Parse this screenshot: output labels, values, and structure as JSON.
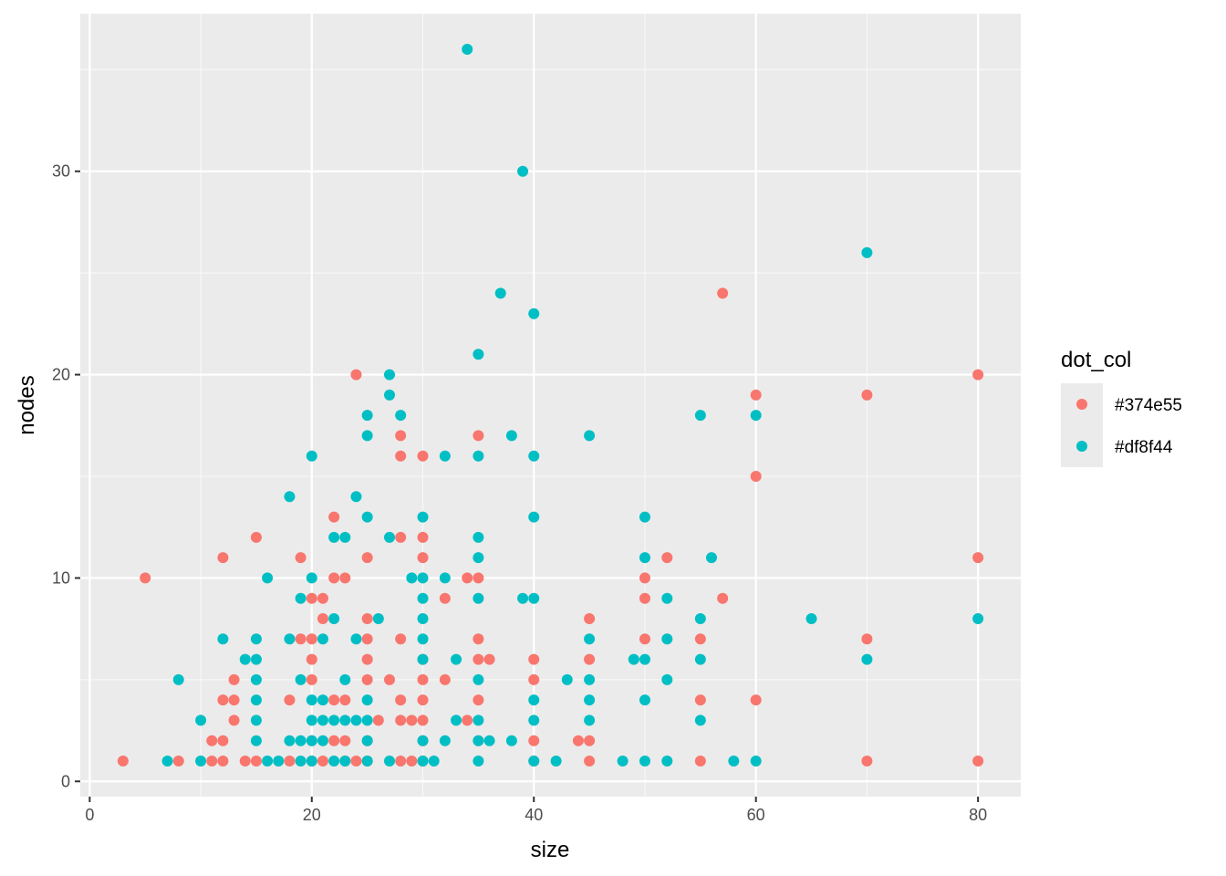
{
  "chart_data": {
    "type": "scatter",
    "title": "",
    "xlabel": "size",
    "ylabel": "nodes",
    "xlim": [
      -0.85,
      83.85
    ],
    "ylim": [
      -0.75,
      37.75
    ],
    "x_ticks": [
      0,
      20,
      40,
      60,
      80
    ],
    "y_ticks": [
      0,
      10,
      20,
      30
    ],
    "x_tick_labels": [
      "0",
      "20",
      "40",
      "60",
      "80"
    ],
    "y_tick_labels": [
      "0",
      "10",
      "20",
      "30"
    ],
    "grid": true,
    "panel_background": "#ebebeb",
    "grid_color": "#ffffff",
    "legend": {
      "title": "dot_col",
      "placement": "right",
      "entries": [
        "#374e55",
        "#df8f44"
      ]
    },
    "series": [
      {
        "name": "#374e55",
        "color": "#f8766d",
        "points": [
          [
            3,
            1
          ],
          [
            5,
            10
          ],
          [
            8,
            1
          ],
          [
            11,
            1
          ],
          [
            11,
            2
          ],
          [
            12,
            1
          ],
          [
            12,
            2
          ],
          [
            12,
            4
          ],
          [
            12,
            11
          ],
          [
            13,
            3
          ],
          [
            13,
            4
          ],
          [
            13,
            5
          ],
          [
            14,
            1
          ],
          [
            15,
            1
          ],
          [
            15,
            12
          ],
          [
            18,
            1
          ],
          [
            18,
            4
          ],
          [
            19,
            7
          ],
          [
            19,
            11
          ],
          [
            20,
            1
          ],
          [
            20,
            2
          ],
          [
            20,
            5
          ],
          [
            20,
            6
          ],
          [
            20,
            7
          ],
          [
            20,
            9
          ],
          [
            21,
            1
          ],
          [
            21,
            8
          ],
          [
            21,
            9
          ],
          [
            22,
            2
          ],
          [
            22,
            4
          ],
          [
            22,
            10
          ],
          [
            22,
            13
          ],
          [
            23,
            1
          ],
          [
            23,
            2
          ],
          [
            23,
            4
          ],
          [
            23,
            10
          ],
          [
            24,
            1
          ],
          [
            24,
            20
          ],
          [
            25,
            1
          ],
          [
            25,
            2
          ],
          [
            25,
            5
          ],
          [
            25,
            6
          ],
          [
            25,
            7
          ],
          [
            25,
            8
          ],
          [
            25,
            11
          ],
          [
            26,
            3
          ],
          [
            27,
            5
          ],
          [
            28,
            1
          ],
          [
            28,
            3
          ],
          [
            28,
            4
          ],
          [
            28,
            7
          ],
          [
            28,
            12
          ],
          [
            28,
            16
          ],
          [
            28,
            17
          ],
          [
            29,
            1
          ],
          [
            29,
            3
          ],
          [
            30,
            1
          ],
          [
            30,
            2
          ],
          [
            30,
            3
          ],
          [
            30,
            4
          ],
          [
            30,
            5
          ],
          [
            30,
            6
          ],
          [
            30,
            11
          ],
          [
            30,
            12
          ],
          [
            30,
            16
          ],
          [
            32,
            5
          ],
          [
            32,
            9
          ],
          [
            34,
            3
          ],
          [
            34,
            10
          ],
          [
            35,
            2
          ],
          [
            35,
            4
          ],
          [
            35,
            6
          ],
          [
            35,
            7
          ],
          [
            35,
            10
          ],
          [
            35,
            17
          ],
          [
            36,
            6
          ],
          [
            40,
            1
          ],
          [
            40,
            2
          ],
          [
            40,
            5
          ],
          [
            40,
            6
          ],
          [
            44,
            2
          ],
          [
            45,
            1
          ],
          [
            45,
            2
          ],
          [
            45,
            6
          ],
          [
            45,
            8
          ],
          [
            50,
            7
          ],
          [
            50,
            9
          ],
          [
            50,
            10
          ],
          [
            52,
            11
          ],
          [
            55,
            1
          ],
          [
            55,
            4
          ],
          [
            55,
            7
          ],
          [
            57,
            9
          ],
          [
            57,
            24
          ],
          [
            60,
            4
          ],
          [
            60,
            15
          ],
          [
            60,
            19
          ],
          [
            70,
            1
          ],
          [
            70,
            7
          ],
          [
            70,
            19
          ],
          [
            80,
            1
          ],
          [
            80,
            11
          ],
          [
            80,
            20
          ]
        ]
      },
      {
        "name": "#df8f44",
        "color": "#00bfc4",
        "points": [
          [
            7,
            1
          ],
          [
            8,
            5
          ],
          [
            10,
            1
          ],
          [
            10,
            3
          ],
          [
            12,
            7
          ],
          [
            14,
            6
          ],
          [
            15,
            2
          ],
          [
            15,
            3
          ],
          [
            15,
            4
          ],
          [
            15,
            5
          ],
          [
            15,
            6
          ],
          [
            15,
            7
          ],
          [
            16,
            1
          ],
          [
            16,
            10
          ],
          [
            17,
            1
          ],
          [
            18,
            2
          ],
          [
            18,
            7
          ],
          [
            18,
            14
          ],
          [
            19,
            1
          ],
          [
            19,
            2
          ],
          [
            19,
            5
          ],
          [
            19,
            9
          ],
          [
            20,
            1
          ],
          [
            20,
            2
          ],
          [
            20,
            3
          ],
          [
            20,
            4
          ],
          [
            20,
            10
          ],
          [
            20,
            16
          ],
          [
            21,
            2
          ],
          [
            21,
            3
          ],
          [
            21,
            4
          ],
          [
            21,
            7
          ],
          [
            22,
            1
          ],
          [
            22,
            3
          ],
          [
            22,
            8
          ],
          [
            22,
            12
          ],
          [
            23,
            1
          ],
          [
            23,
            3
          ],
          [
            23,
            5
          ],
          [
            23,
            12
          ],
          [
            24,
            3
          ],
          [
            24,
            7
          ],
          [
            24,
            14
          ],
          [
            25,
            1
          ],
          [
            25,
            2
          ],
          [
            25,
            3
          ],
          [
            25,
            4
          ],
          [
            25,
            13
          ],
          [
            25,
            17
          ],
          [
            25,
            18
          ],
          [
            26,
            8
          ],
          [
            27,
            1
          ],
          [
            27,
            12
          ],
          [
            27,
            19
          ],
          [
            27,
            20
          ],
          [
            28,
            18
          ],
          [
            29,
            10
          ],
          [
            30,
            1
          ],
          [
            30,
            2
          ],
          [
            30,
            6
          ],
          [
            30,
            7
          ],
          [
            30,
            8
          ],
          [
            30,
            9
          ],
          [
            30,
            10
          ],
          [
            30,
            13
          ],
          [
            31,
            1
          ],
          [
            32,
            2
          ],
          [
            32,
            10
          ],
          [
            32,
            16
          ],
          [
            33,
            3
          ],
          [
            33,
            6
          ],
          [
            34,
            36
          ],
          [
            35,
            1
          ],
          [
            35,
            2
          ],
          [
            35,
            3
          ],
          [
            35,
            5
          ],
          [
            35,
            9
          ],
          [
            35,
            11
          ],
          [
            35,
            12
          ],
          [
            35,
            16
          ],
          [
            35,
            21
          ],
          [
            36,
            2
          ],
          [
            37,
            24
          ],
          [
            38,
            2
          ],
          [
            38,
            17
          ],
          [
            39,
            9
          ],
          [
            39,
            30
          ],
          [
            40,
            1
          ],
          [
            40,
            3
          ],
          [
            40,
            4
          ],
          [
            40,
            9
          ],
          [
            40,
            13
          ],
          [
            40,
            16
          ],
          [
            40,
            23
          ],
          [
            42,
            1
          ],
          [
            43,
            5
          ],
          [
            45,
            3
          ],
          [
            45,
            4
          ],
          [
            45,
            5
          ],
          [
            45,
            7
          ],
          [
            45,
            17
          ],
          [
            48,
            1
          ],
          [
            49,
            6
          ],
          [
            50,
            1
          ],
          [
            50,
            4
          ],
          [
            50,
            6
          ],
          [
            50,
            11
          ],
          [
            50,
            13
          ],
          [
            52,
            1
          ],
          [
            52,
            5
          ],
          [
            52,
            7
          ],
          [
            52,
            9
          ],
          [
            55,
            3
          ],
          [
            55,
            6
          ],
          [
            55,
            8
          ],
          [
            55,
            18
          ],
          [
            56,
            11
          ],
          [
            58,
            1
          ],
          [
            60,
            1
          ],
          [
            60,
            18
          ],
          [
            65,
            8
          ],
          [
            70,
            6
          ],
          [
            70,
            26
          ],
          [
            80,
            8
          ]
        ]
      }
    ]
  }
}
